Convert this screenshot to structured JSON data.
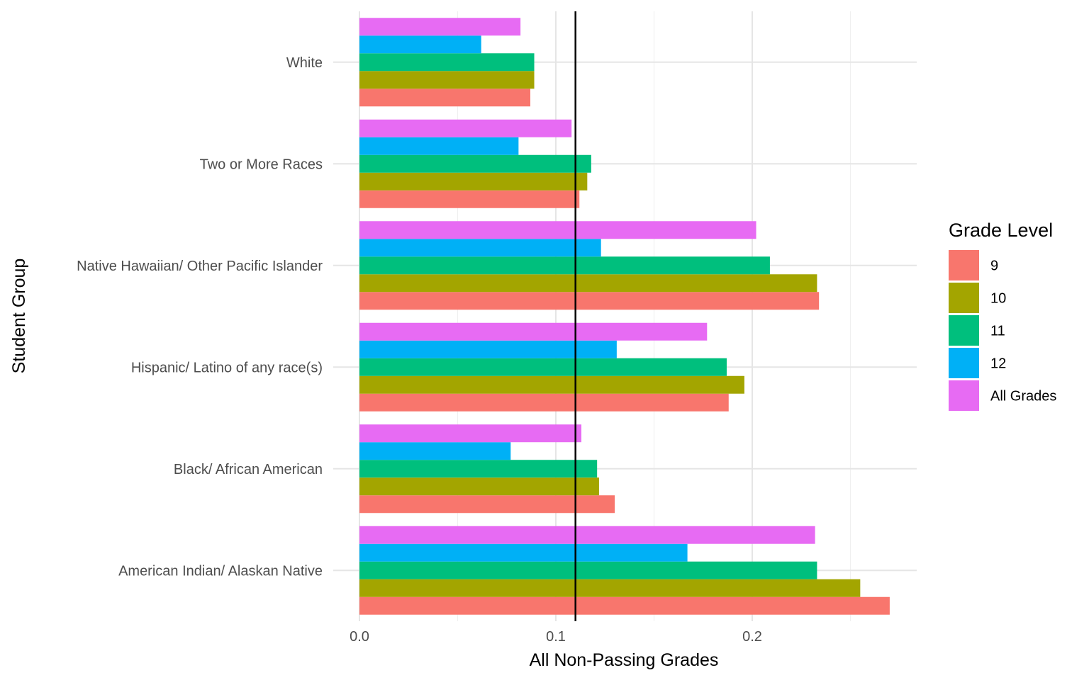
{
  "chart_data": {
    "type": "bar",
    "orientation": "horizontal",
    "xlabel": "All Non-Passing Grades",
    "ylabel": "Student Group",
    "xlim": [
      0,
      0.285
    ],
    "x_ticks": [
      0.0,
      0.1,
      0.2
    ],
    "x_tick_labels": [
      "0.0",
      "0.1",
      "0.2"
    ],
    "reference_line_x": 0.11,
    "grid": true,
    "categories": [
      "American Indian/ Alaskan Native",
      "Black/ African American",
      "Hispanic/ Latino of any race(s)",
      "Native Hawaiian/ Other Pacific Islander",
      "Two or More Races",
      "White"
    ],
    "legend_title": "Grade Level",
    "legend_position": "right",
    "series": [
      {
        "name": "9",
        "color": "#F8766D",
        "values": [
          0.27,
          0.13,
          0.188,
          0.234,
          0.112,
          0.087
        ]
      },
      {
        "name": "10",
        "color": "#A3A500",
        "values": [
          0.255,
          0.122,
          0.196,
          0.233,
          0.116,
          0.089
        ]
      },
      {
        "name": "11",
        "color": "#00BF7D",
        "values": [
          0.233,
          0.121,
          0.187,
          0.209,
          0.118,
          0.089
        ]
      },
      {
        "name": "12",
        "color": "#00B0F6",
        "values": [
          0.167,
          0.077,
          0.131,
          0.123,
          0.081,
          0.062
        ]
      },
      {
        "name": "All Grades",
        "color": "#E76BF3",
        "values": [
          0.232,
          0.113,
          0.177,
          0.202,
          0.108,
          0.082
        ]
      }
    ]
  }
}
